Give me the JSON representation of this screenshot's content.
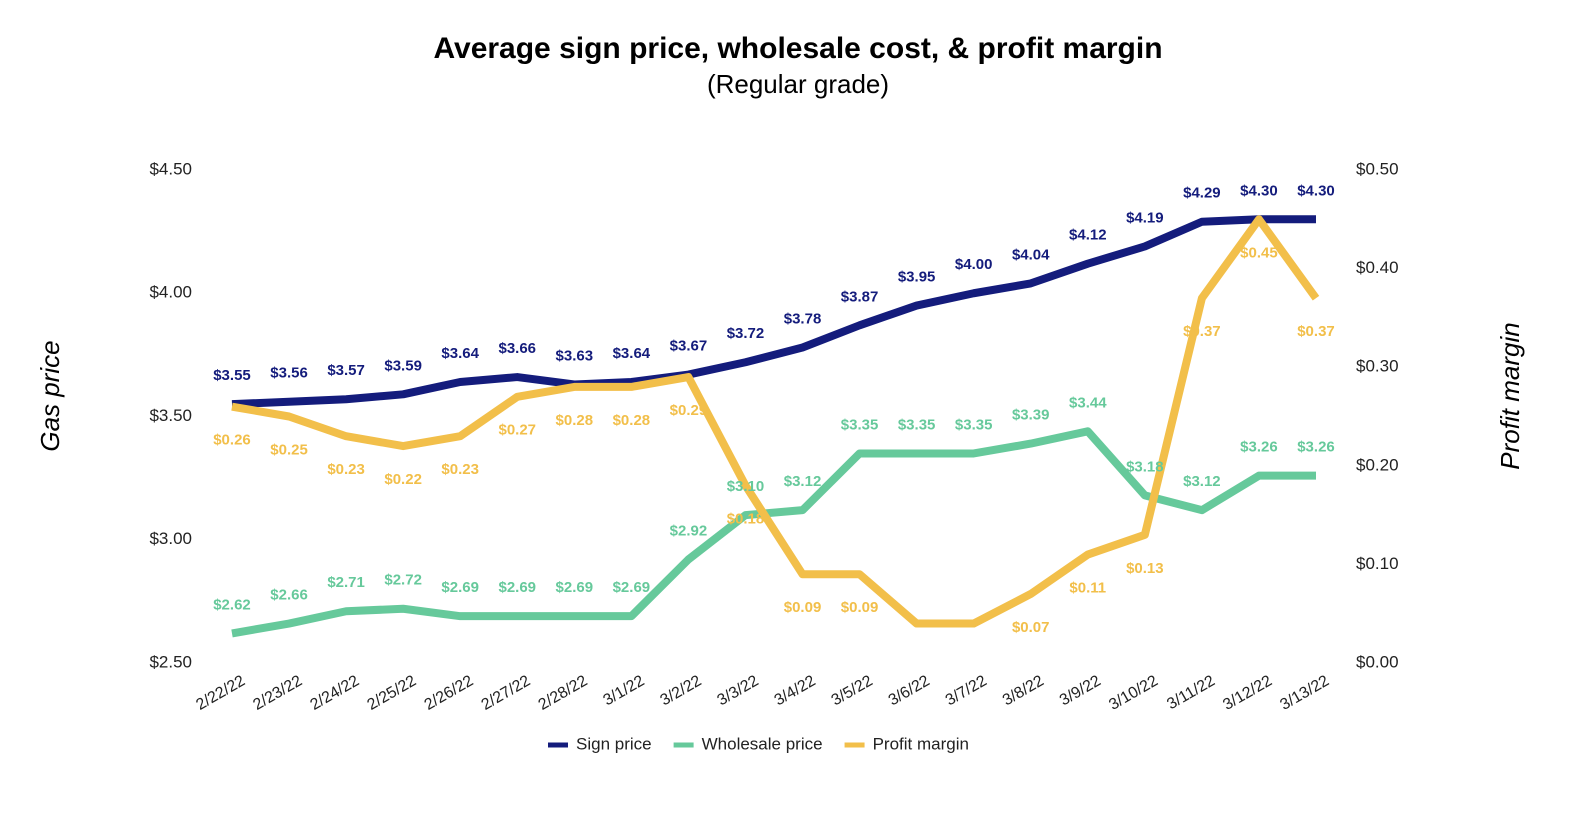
{
  "chart_data": {
    "type": "line",
    "title": "Average sign price, wholesale cost, & profit margin",
    "subtitle": "(Regular grade)",
    "y_label": "Gas price",
    "y2_label": "Profit margin",
    "categories": [
      "2/22/22",
      "2/23/22",
      "2/24/22",
      "2/25/22",
      "2/26/22",
      "2/27/22",
      "2/28/22",
      "3/1/22",
      "3/2/22",
      "3/3/22",
      "3/4/22",
      "3/5/22",
      "3/6/22",
      "3/7/22",
      "3/8/22",
      "3/9/22",
      "3/10/22",
      "3/11/22",
      "3/12/22",
      "3/13/22"
    ],
    "ylim": [
      2.5,
      4.5
    ],
    "yticks": [
      {
        "value": 2.5,
        "label": "$2.50"
      },
      {
        "value": 3,
        "label": "$3.00"
      },
      {
        "value": 3.5,
        "label": "$3.50"
      },
      {
        "value": 4,
        "label": "$4.00"
      },
      {
        "value": 4.5,
        "label": "$4.50"
      }
    ],
    "y2lim": [
      0,
      0.5
    ],
    "y2ticks": [
      {
        "value": 0,
        "label": "$0.00"
      },
      {
        "value": 0.1,
        "label": "$0.10"
      },
      {
        "value": 0.2,
        "label": "$0.20"
      },
      {
        "value": 0.3,
        "label": "$0.30"
      },
      {
        "value": 0.4,
        "label": "$0.40"
      },
      {
        "value": 0.5,
        "label": "$0.50"
      }
    ],
    "legend": "bottom",
    "series": [
      {
        "name": "Sign price",
        "color": "#141c7c",
        "values": [
          3.55,
          3.56,
          3.57,
          3.59,
          3.64,
          3.66,
          3.63,
          3.64,
          3.67,
          3.72,
          3.78,
          3.87,
          3.95,
          4.0,
          4.04,
          4.12,
          4.19,
          4.29,
          4.3,
          4.3
        ],
        "value_labels": [
          "$3.55",
          "$3.56",
          "$3.57",
          "$3.59",
          "$3.64",
          "$3.66",
          "$3.63",
          "$3.64",
          "$3.67",
          "$3.72",
          "$3.78",
          "$3.87",
          "$3.95",
          "$4.00",
          "$4.04",
          "$4.12",
          "$4.19",
          "$4.29",
          "$4.30",
          "$4.30"
        ]
      },
      {
        "name": "Wholesale price",
        "color": "#66c99b",
        "values": [
          2.62,
          2.66,
          2.71,
          2.72,
          2.69,
          2.69,
          2.69,
          2.69,
          2.92,
          3.1,
          3.12,
          3.35,
          3.35,
          3.35,
          3.39,
          3.44,
          3.18,
          3.12,
          3.26,
          3.26
        ],
        "value_labels": [
          "$2.62",
          "$2.66",
          "$2.71",
          "$2.72",
          "$2.69",
          "$2.69",
          "$2.69",
          "$2.69",
          "$2.92",
          "$3.10",
          "$3.12",
          "$3.35",
          "$3.35",
          "$3.35",
          "$3.39",
          "$3.44",
          "$3.18",
          "$3.12",
          "$3.26",
          "$3.26"
        ]
      },
      {
        "name": "Profit margin",
        "color": "#f2bf4a",
        "axis": "y2",
        "values": [
          0.26,
          0.25,
          0.23,
          0.22,
          0.23,
          0.27,
          0.28,
          0.28,
          0.29,
          0.18,
          0.09,
          0.09,
          0.04,
          0.04,
          0.07,
          0.11,
          0.13,
          0.37,
          0.45,
          0.37
        ],
        "value_labels": [
          "$0.26",
          "$0.25",
          "$0.23",
          "$0.22",
          "$0.23",
          "$0.27",
          "$0.28",
          "$0.28",
          "$0.29",
          "$0.18",
          "$0.09",
          "$0.09",
          null,
          null,
          "$0.07",
          "$0.11",
          "$0.13",
          "$0.37",
          "$0.45",
          "$0.37"
        ]
      }
    ]
  }
}
